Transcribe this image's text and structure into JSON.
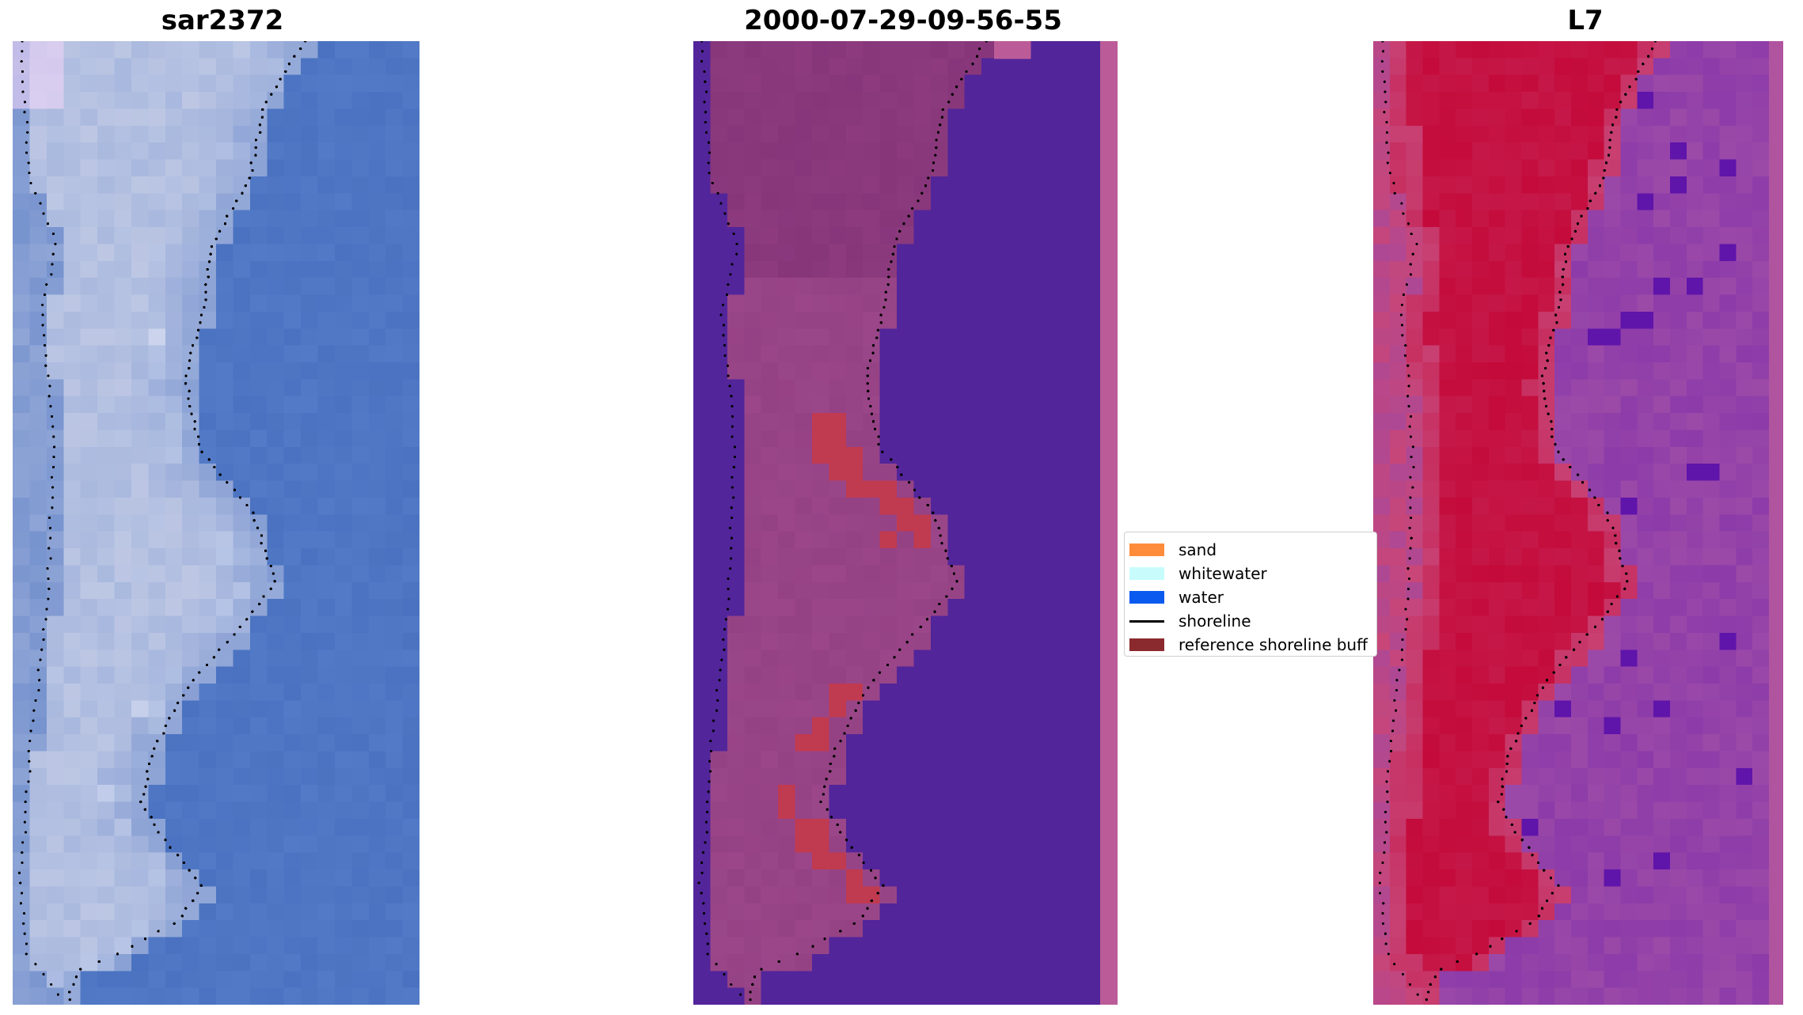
{
  "panels": [
    {
      "title": "sar2372",
      "kind": "rgb-image"
    },
    {
      "title": "2000-07-29-09-56-55",
      "kind": "classified-image"
    },
    {
      "title": "L7",
      "kind": "mndwi-image"
    }
  ],
  "legend": {
    "items": [
      {
        "label": "sand",
        "color": "#ff8c3a",
        "kind": "patch"
      },
      {
        "label": "whitewater",
        "color": "#c8fcfc",
        "kind": "patch"
      },
      {
        "label": "water",
        "color": "#0a5af0",
        "kind": "patch"
      },
      {
        "label": "shoreline",
        "color": "#000000",
        "kind": "line"
      },
      {
        "label": "reference shoreline buff",
        "color": "#8b2a2e",
        "kind": "patch"
      }
    ]
  },
  "colors": {
    "rgb_water": "#4a72c0",
    "rgb_beach": "#c8cfe8",
    "class_water": "#52259a",
    "class_land": "#9e4a8c",
    "class_buffer": "#c03a50",
    "class_edge": "#bb5c98",
    "mndwi_land": "#c40a3a",
    "mndwi_water": "#9c4aa8",
    "shoreline": "#000000"
  }
}
